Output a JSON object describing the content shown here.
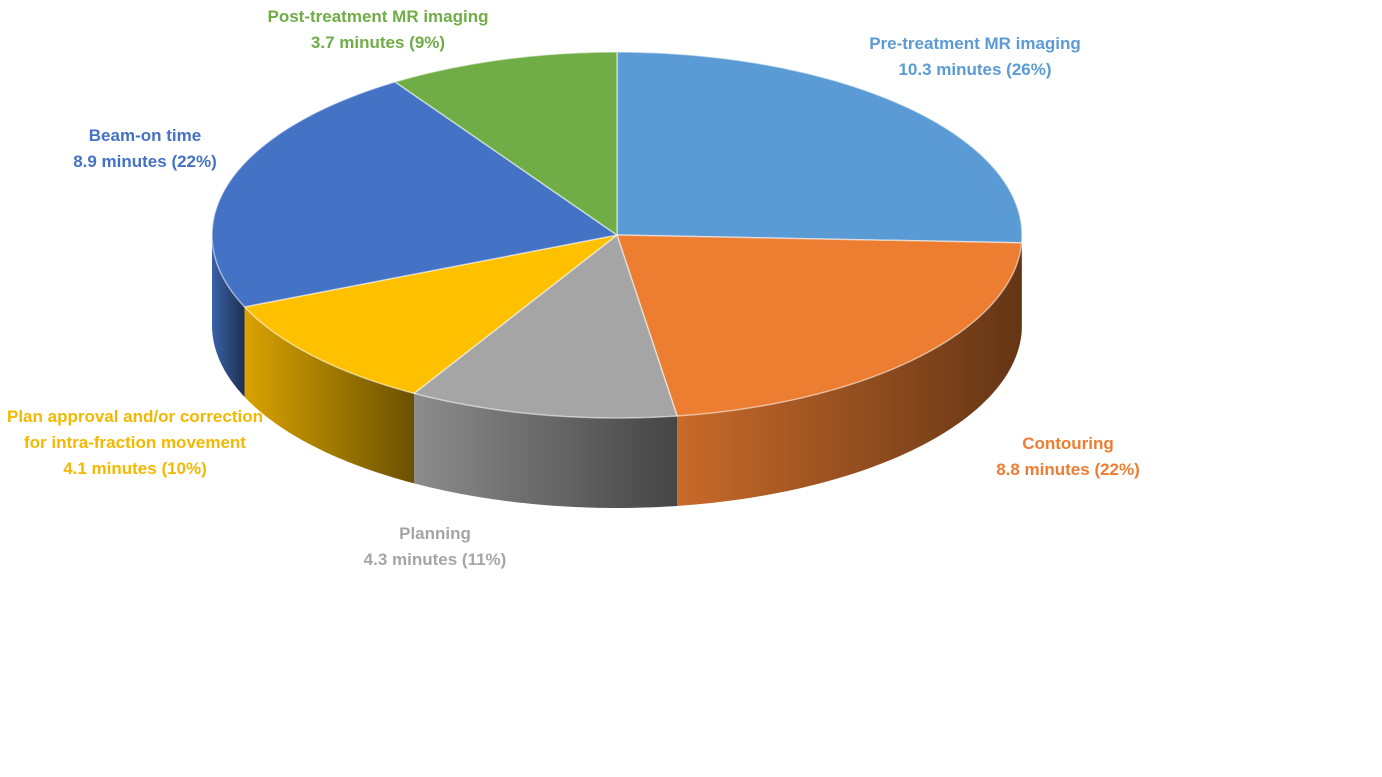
{
  "chart_data": {
    "type": "pie",
    "categories": [
      "Pre-treatment MR imaging",
      "Contouring",
      "Planning",
      "Plan approval and/or correction for intra-fraction movement",
      "Beam-on time",
      "Post-treatment MR imaging"
    ],
    "values": [
      10.3,
      8.8,
      4.3,
      4.1,
      8.9,
      3.7
    ],
    "value_labels": [
      "10.3 minutes (26%)",
      "8.8 minutes (22%)",
      "4.3 minutes (11%)",
      "4.1 minutes (10%)",
      "8.9 minutes (22%)",
      "3.7 minutes (9%)"
    ],
    "colors": [
      "#5b9bd5",
      "#ed7d31",
      "#a5a5a5",
      "#ffc000",
      "#4472c4",
      "#70ad47"
    ]
  }
}
